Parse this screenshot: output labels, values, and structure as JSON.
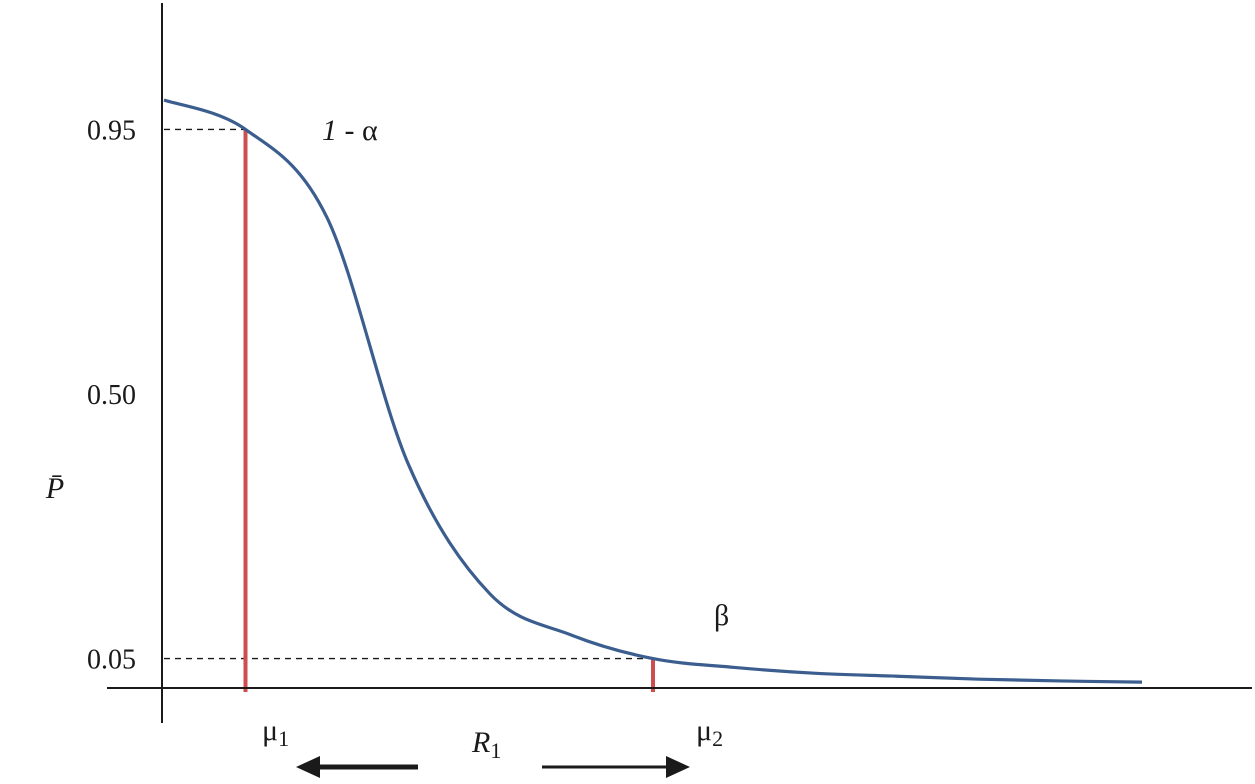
{
  "chart_data": {
    "type": "line",
    "ylabel": "P̄",
    "yticks": [
      "0.95",
      "0.50",
      "0.05"
    ],
    "ytick_values": [
      0.95,
      0.5,
      0.05
    ],
    "series": [
      {
        "x": [
          0.0,
          0.5,
          1.0,
          1.5,
          2.0,
          2.5,
          3.0,
          3.5,
          4.0,
          4.5,
          5.0,
          5.5,
          6.0
        ],
        "values": [
          1.0,
          0.95,
          0.8,
          0.38,
          0.16,
          0.09,
          0.05,
          0.035,
          0.025,
          0.02,
          0.015,
          0.012,
          0.01
        ]
      }
    ],
    "markers": [
      {
        "x": 0.5,
        "y": 0.95,
        "x_label": "μ",
        "x_sub": "1",
        "point_label_main": "1",
        "point_label_rest": " - α"
      },
      {
        "x": 3.0,
        "y": 0.05,
        "x_label": "μ",
        "x_sub": "2",
        "point_label_main": "β",
        "point_label_rest": ""
      }
    ],
    "range_label": {
      "main": "R",
      "sub": "1"
    },
    "colors": {
      "curve": "#3b5e8f",
      "marker": "#cc4e4e",
      "axis": "#1a1a1a",
      "guide": "#1a1a1a"
    },
    "grid": false,
    "legend": "none"
  }
}
